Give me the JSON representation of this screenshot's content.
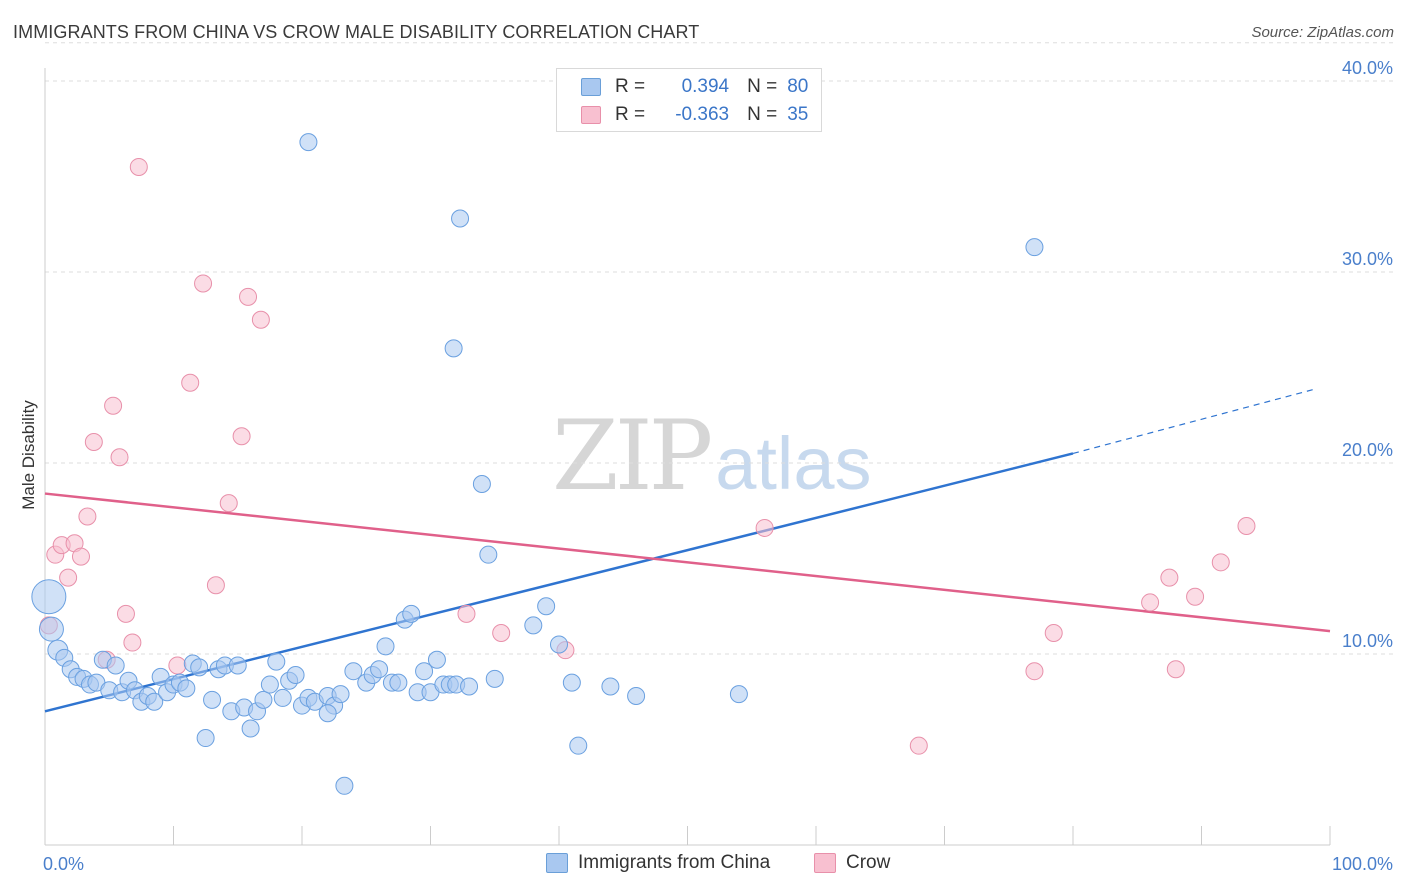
{
  "title": "IMMIGRANTS FROM CHINA VS CROW MALE DISABILITY CORRELATION CHART",
  "source": "Source: ZipAtlas.com",
  "watermark": {
    "zip": "ZIP",
    "atlas": "atlas"
  },
  "legend": [
    {
      "r_label": "R =",
      "r_value": "0.394",
      "n_label": "N =",
      "n_value": "80",
      "color": "#a9c8f0",
      "border": "#6a9fd8"
    },
    {
      "r_label": "R =",
      "r_value": "-0.363",
      "n_label": "N =",
      "n_value": "35",
      "color": "#f8c0d0",
      "border": "#e890aa"
    }
  ],
  "bottom_legend": [
    "Immigrants from China",
    "Crow"
  ],
  "chart_data": {
    "type": "scatter",
    "title": "IMMIGRANTS FROM CHINA VS CROW MALE DISABILITY CORRELATION CHART",
    "xlabel": "",
    "ylabel": "Male Disability",
    "xlim": [
      0,
      100
    ],
    "ylim": [
      0,
      42
    ],
    "x_tick_labels": [
      "0.0%",
      "100.0%"
    ],
    "y_ticks": [
      10,
      20,
      30,
      40
    ],
    "y_tick_labels": [
      "10.0%",
      "20.0%",
      "30.0%",
      "40.0%"
    ],
    "grid": true,
    "legend_position": "top-center",
    "series": [
      {
        "name": "Immigrants from China",
        "color": "#6aa0e0",
        "fill": "#a9c8f0",
        "line_color": "#2f74d0",
        "trend": {
          "x0": 0,
          "y0": 7.0,
          "x1": 80,
          "y1": 20.5,
          "dash_x1": 99,
          "dash_y1": 23.9
        },
        "points": [
          [
            0.3,
            13.0
          ],
          [
            0.5,
            11.3
          ],
          [
            1,
            10.2
          ],
          [
            1.5,
            9.8
          ],
          [
            2,
            9.2
          ],
          [
            2.5,
            8.8
          ],
          [
            3,
            8.7
          ],
          [
            3.5,
            8.4
          ],
          [
            4,
            8.5
          ],
          [
            4.5,
            9.7
          ],
          [
            5,
            8.1
          ],
          [
            5.5,
            9.4
          ],
          [
            6,
            8.0
          ],
          [
            6.5,
            8.6
          ],
          [
            7,
            8.1
          ],
          [
            7.5,
            7.5
          ],
          [
            8,
            7.8
          ],
          [
            8.5,
            7.5
          ],
          [
            9,
            8.8
          ],
          [
            9.5,
            8.0
          ],
          [
            10,
            8.4
          ],
          [
            10.5,
            8.5
          ],
          [
            11,
            8.2
          ],
          [
            11.5,
            9.5
          ],
          [
            12,
            9.3
          ],
          [
            12.5,
            5.6
          ],
          [
            13,
            7.6
          ],
          [
            13.5,
            9.2
          ],
          [
            14,
            9.4
          ],
          [
            14.5,
            7.0
          ],
          [
            15,
            9.4
          ],
          [
            15.5,
            7.2
          ],
          [
            16,
            6.1
          ],
          [
            16.5,
            7.0
          ],
          [
            17,
            7.6
          ],
          [
            17.5,
            8.4
          ],
          [
            18,
            9.6
          ],
          [
            18.5,
            7.7
          ],
          [
            19,
            8.6
          ],
          [
            19.5,
            8.9
          ],
          [
            20,
            7.3
          ],
          [
            20.5,
            7.7
          ],
          [
            21,
            7.5
          ],
          [
            22,
            7.8
          ],
          [
            22.5,
            7.3
          ],
          [
            22,
            6.9
          ],
          [
            23,
            7.9
          ],
          [
            24,
            9.1
          ],
          [
            20.5,
            36.8
          ],
          [
            25,
            8.5
          ],
          [
            25.5,
            8.9
          ],
          [
            26,
            9.2
          ],
          [
            26.5,
            10.4
          ],
          [
            27,
            8.5
          ],
          [
            27.5,
            8.5
          ],
          [
            28,
            11.8
          ],
          [
            28.5,
            12.1
          ],
          [
            29,
            8.0
          ],
          [
            29.5,
            9.1
          ],
          [
            30,
            8.0
          ],
          [
            30.5,
            9.7
          ],
          [
            31,
            8.4
          ],
          [
            31.5,
            8.4
          ],
          [
            32,
            8.4
          ],
          [
            33,
            8.3
          ],
          [
            34,
            18.9
          ],
          [
            34.5,
            15.2
          ],
          [
            35,
            8.7
          ],
          [
            32.3,
            32.8
          ],
          [
            38,
            11.5
          ],
          [
            31.8,
            26.0
          ],
          [
            39,
            12.5
          ],
          [
            40,
            10.5
          ],
          [
            41,
            8.5
          ],
          [
            41.5,
            5.2
          ],
          [
            44,
            8.3
          ],
          [
            23.3,
            3.1
          ],
          [
            46,
            7.8
          ],
          [
            54,
            7.9
          ],
          [
            77,
            31.3
          ]
        ]
      },
      {
        "name": "Crow",
        "color": "#e890aa",
        "fill": "#f8c0d0",
        "line_color": "#e0608a",
        "trend": {
          "x0": 0,
          "y0": 18.4,
          "x1": 100,
          "y1": 11.2
        },
        "points": [
          [
            0.3,
            11.5
          ],
          [
            0.8,
            15.2
          ],
          [
            1.3,
            15.7
          ],
          [
            1.8,
            14.0
          ],
          [
            2.3,
            15.8
          ],
          [
            2.8,
            15.1
          ],
          [
            3.3,
            17.2
          ],
          [
            3.8,
            21.1
          ],
          [
            4.8,
            9.7
          ],
          [
            5.3,
            23.0
          ],
          [
            5.8,
            20.3
          ],
          [
            6.3,
            12.1
          ],
          [
            6.8,
            10.6
          ],
          [
            7.3,
            35.5
          ],
          [
            10.3,
            9.4
          ],
          [
            11.3,
            24.2
          ],
          [
            12.3,
            29.4
          ],
          [
            13.3,
            13.6
          ],
          [
            14.3,
            17.9
          ],
          [
            15.3,
            21.4
          ],
          [
            15.8,
            28.7
          ],
          [
            16.8,
            27.5
          ],
          [
            32.8,
            12.1
          ],
          [
            35.5,
            11.1
          ],
          [
            40.5,
            10.2
          ],
          [
            56,
            16.6
          ],
          [
            68,
            5.2
          ],
          [
            77,
            9.1
          ],
          [
            78.5,
            11.1
          ],
          [
            86,
            12.7
          ],
          [
            87.5,
            14.0
          ],
          [
            88,
            9.2
          ],
          [
            89.5,
            13.0
          ],
          [
            91.5,
            14.8
          ],
          [
            93.5,
            16.7
          ]
        ]
      }
    ]
  }
}
